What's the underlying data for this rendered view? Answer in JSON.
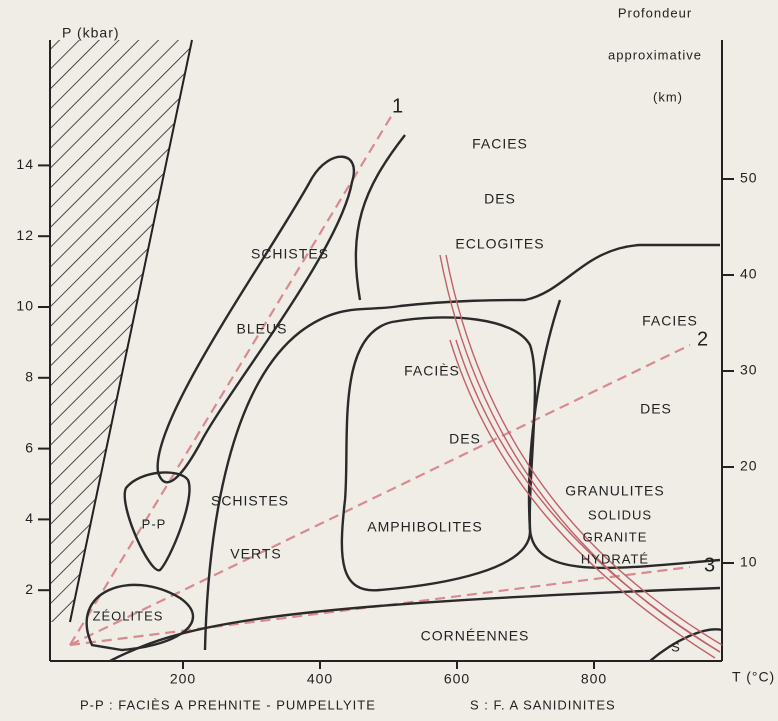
{
  "axes": {
    "y_label": "P (kbar)",
    "x_label": "T (°C)",
    "y2_label": [
      "Profondeur",
      "approximative",
      "(km)"
    ],
    "xticks": [
      200,
      400,
      600,
      800
    ],
    "yticks": [
      2,
      4,
      6,
      8,
      10,
      12,
      14
    ],
    "y2ticks": [
      10,
      20,
      30,
      40,
      50
    ]
  },
  "facies": [
    {
      "lines": [
        "FACIES",
        "DES",
        "ECLOGITES"
      ]
    },
    {
      "lines": [
        "SCHISTES",
        "BLEUS"
      ]
    },
    {
      "lines": [
        "FACIÈS",
        "DES",
        "AMPHIBOLITES"
      ]
    },
    {
      "lines": [
        "SCHISTES",
        "VERTS"
      ]
    },
    {
      "lines": [
        "FACIES",
        "DES",
        "GRANULITES"
      ]
    },
    {
      "lines": [
        "P-P"
      ]
    },
    {
      "lines": [
        "ZÉOLITES"
      ]
    },
    {
      "lines": [
        "CORNÉENNES"
      ]
    },
    {
      "lines": [
        "S"
      ]
    }
  ],
  "solidus": [
    "SOLIDUS",
    "GRANITE",
    "HYDRATÉ"
  ],
  "gradients": [
    "1",
    "2",
    "3"
  ],
  "footnotes": [
    "P-P : FACIÈS A PREHNITE - PUMPELLYITE",
    "S : F. A SANIDINITES"
  ]
}
